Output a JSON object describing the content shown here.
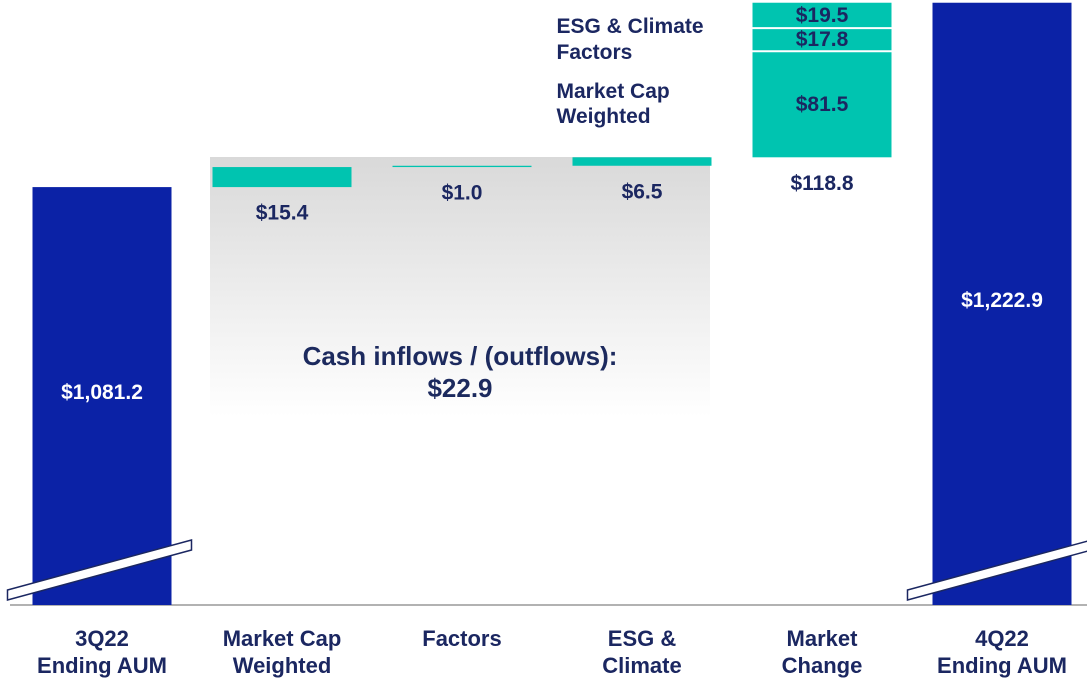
{
  "chart_data": {
    "type": "waterfall",
    "categories": [
      "3Q22\nEnding AUM",
      "Market Cap\nWeighted",
      "Factors",
      "ESG &\nClimate",
      "Market\nChange",
      "4Q22\nEnding AUM"
    ],
    "values": [
      1081.2,
      15.4,
      1.0,
      6.5,
      118.8,
      1222.9
    ],
    "value_labels": [
      "$1,081.2",
      "$15.4",
      "$1.0",
      "$6.5",
      "$118.8",
      "$1,222.9"
    ],
    "kinds": [
      "total",
      "change",
      "change",
      "change",
      "change",
      "total"
    ],
    "breakdown": [
      null,
      null,
      null,
      null,
      [
        {
          "name": "Market Cap\nWeighted",
          "value": 81.5,
          "label": "$81.5"
        },
        {
          "name": "ESG & Climate\nFactors",
          "value": 17.8,
          "label": "$17.8"
        },
        {
          "value": 19.5,
          "label": "$19.5"
        }
      ],
      null
    ],
    "annotation": {
      "text": "Cash inflows / (outflows):",
      "value": 22.9,
      "label": "$22.9"
    },
    "total_color": "#0b22a6",
    "change_color": "#00c4b0",
    "ylim": [
      760,
      1225
    ],
    "axis_break": true
  }
}
